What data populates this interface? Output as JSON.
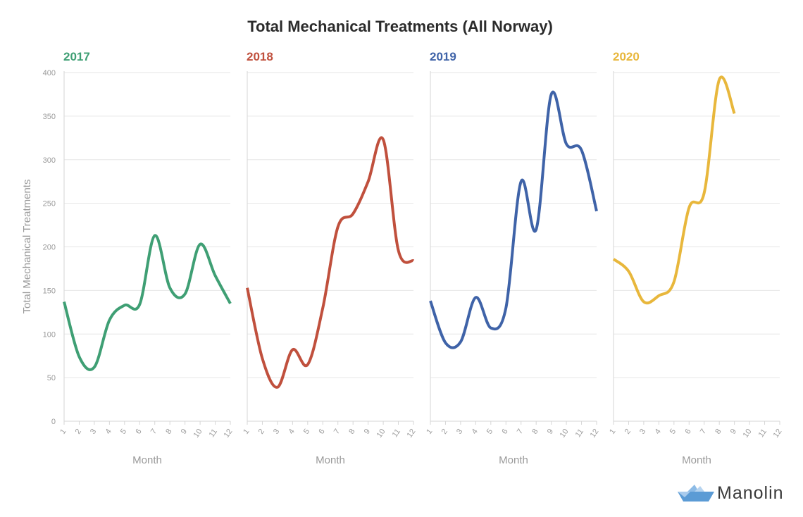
{
  "chart_data": {
    "type": "line",
    "title": "Total Mechanical Treatments (All Norway)",
    "ylabel": "Total Mechanical Treatments",
    "xlabel": "Month",
    "ylim": [
      0,
      400
    ],
    "yticks": [
      0,
      50,
      100,
      150,
      200,
      250,
      300,
      350,
      400
    ],
    "x": [
      1,
      2,
      3,
      4,
      5,
      6,
      7,
      8,
      9,
      10,
      11,
      12
    ],
    "grid": true,
    "panels": [
      {
        "name": "2017",
        "color": "#3f9f74",
        "values": [
          137,
          74,
          62,
          116,
          133,
          134,
          213,
          153,
          146,
          203,
          167,
          135
        ]
      },
      {
        "name": "2018",
        "color": "#c0503d",
        "values": [
          153,
          72,
          39,
          82,
          65,
          130,
          223,
          238,
          275,
          323,
          196,
          184
        ]
      },
      {
        "name": "2019",
        "color": "#3f63a8",
        "values": [
          138,
          90,
          91,
          142,
          107,
          130,
          275,
          220,
          375,
          318,
          311,
          241
        ]
      },
      {
        "name": "2020",
        "color": "#e8b73c",
        "values": [
          186,
          172,
          137,
          144,
          160,
          245,
          262,
          392,
          353
        ]
      }
    ]
  },
  "logo": {
    "text": "Manolin",
    "icon": "paper-boat-icon",
    "color": "#5b9bd5"
  }
}
